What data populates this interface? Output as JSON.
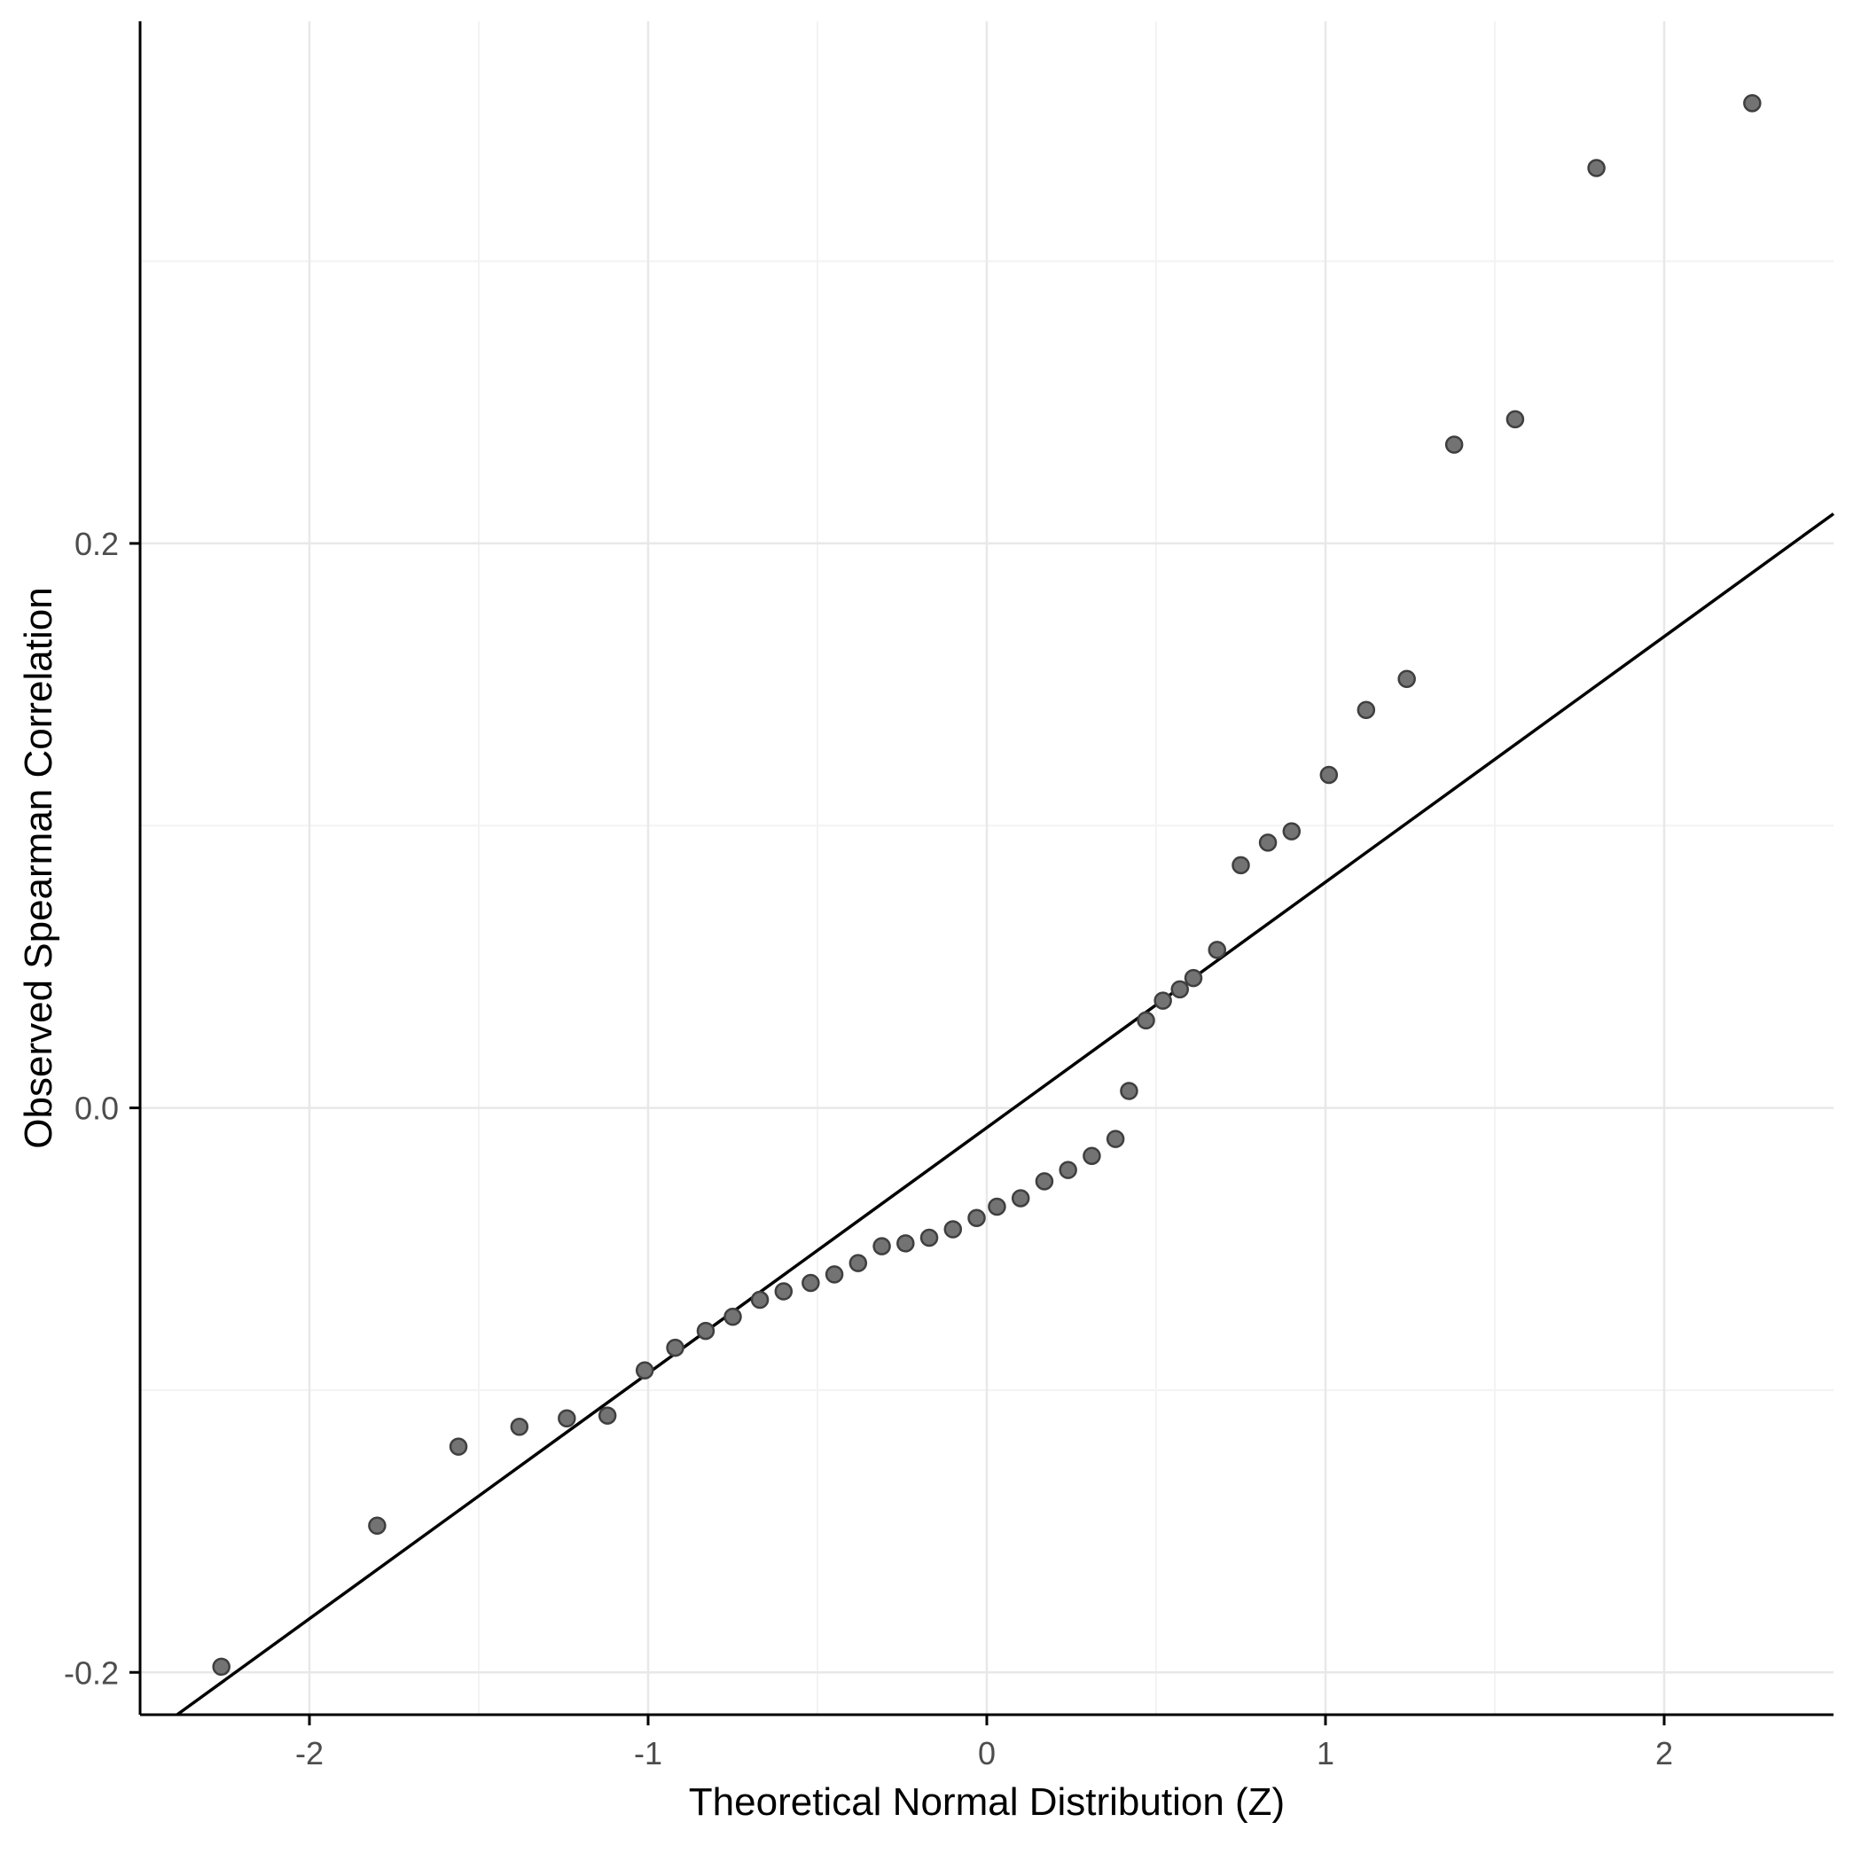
{
  "chart_data": {
    "type": "scatter",
    "title": "",
    "xlabel": "Theoretical Normal Distribution (Z)",
    "ylabel": "Observed Spearman Correlation",
    "xlim": [
      -2.5,
      2.5
    ],
    "ylim": [
      -0.215,
      0.385
    ],
    "grid": true,
    "legend": "none",
    "x_ticks": [
      -2,
      -1,
      0,
      1,
      2
    ],
    "x_tick_labels": [
      "-2",
      "-1",
      "0",
      "1",
      "2"
    ],
    "y_ticks": [
      -0.2,
      0.0,
      0.2
    ],
    "y_tick_labels": [
      "-0.2",
      "0.0",
      "0.2"
    ],
    "x_minor_ticks": [
      -1.5,
      -0.5,
      0.5,
      1.5
    ],
    "y_minor_ticks": [
      -0.1,
      0.1,
      0.3
    ],
    "reference_line": {
      "slope": 0.087,
      "intercept": -0.007
    },
    "points": [
      [
        -2.26,
        -0.198
      ],
      [
        -1.8,
        -0.148
      ],
      [
        -1.56,
        -0.12
      ],
      [
        -1.38,
        -0.113
      ],
      [
        -1.24,
        -0.11
      ],
      [
        -1.12,
        -0.109
      ],
      [
        -1.01,
        -0.093
      ],
      [
        -0.92,
        -0.085
      ],
      [
        -0.83,
        -0.079
      ],
      [
        -0.75,
        -0.074
      ],
      [
        -0.67,
        -0.068
      ],
      [
        -0.6,
        -0.065
      ],
      [
        -0.52,
        -0.062
      ],
      [
        -0.45,
        -0.059
      ],
      [
        -0.38,
        -0.055
      ],
      [
        -0.31,
        -0.049
      ],
      [
        -0.24,
        -0.048
      ],
      [
        -0.17,
        -0.046
      ],
      [
        -0.1,
        -0.043
      ],
      [
        -0.03,
        -0.039
      ],
      [
        0.03,
        -0.035
      ],
      [
        0.1,
        -0.032
      ],
      [
        0.17,
        -0.026
      ],
      [
        0.24,
        -0.022
      ],
      [
        0.31,
        -0.017
      ],
      [
        0.38,
        -0.011
      ],
      [
        0.42,
        0.006
      ],
      [
        0.47,
        0.031
      ],
      [
        0.52,
        0.038
      ],
      [
        0.57,
        0.042
      ],
      [
        0.61,
        0.046
      ],
      [
        0.68,
        0.056
      ],
      [
        0.75,
        0.086
      ],
      [
        0.83,
        0.094
      ],
      [
        0.9,
        0.098
      ],
      [
        1.01,
        0.118
      ],
      [
        1.12,
        0.141
      ],
      [
        1.24,
        0.152
      ],
      [
        1.38,
        0.235
      ],
      [
        1.56,
        0.244
      ],
      [
        1.8,
        0.333
      ],
      [
        2.26,
        0.356
      ]
    ],
    "colors": {
      "background": "#ffffff",
      "grid_major": "#e8e8e8",
      "grid_minor": "#f3f3f3",
      "axis": "#000000",
      "line": "#000000",
      "point_fill": "#737373",
      "point_stroke": "#3f3f3f",
      "tick_text": "#4d4d4d",
      "title_text": "#000000"
    }
  }
}
